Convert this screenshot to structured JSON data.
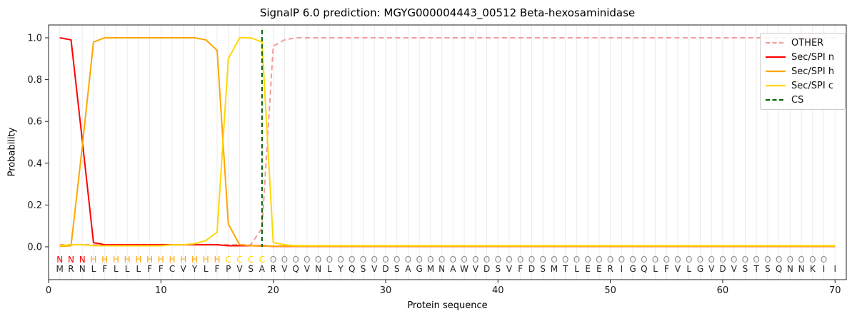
{
  "figure": {
    "title": "SignalP 6.0 prediction: MGYG000004443_00512 Beta-hexosaminidase",
    "xlabel": "Protein sequence",
    "ylabel": "Probability"
  },
  "chart_data": {
    "type": "line",
    "title": "SignalP 6.0 prediction: MGYG000004443_00512 Beta-hexosaminidase",
    "xlabel": "Protein sequence",
    "ylabel": "Probability",
    "xlim": [
      0,
      71
    ],
    "ylim": [
      -0.16,
      1.06
    ],
    "xticks": [
      0,
      10,
      20,
      30,
      40,
      50,
      60,
      70
    ],
    "yticks": [
      0.0,
      0.2,
      0.4,
      0.6,
      0.8,
      1.0
    ],
    "grid": {
      "vertical_per_residue": true,
      "color": "#ebebeb"
    },
    "legend": {
      "position": "upper right",
      "entries": [
        "OTHER",
        "Sec/SPI n",
        "Sec/SPI h",
        "Sec/SPI c",
        "CS"
      ]
    },
    "x": [
      1,
      2,
      3,
      4,
      5,
      6,
      7,
      8,
      9,
      10,
      11,
      12,
      13,
      14,
      15,
      16,
      17,
      18,
      19,
      20,
      21,
      22,
      23,
      24,
      25,
      26,
      27,
      28,
      29,
      30,
      31,
      32,
      33,
      34,
      35,
      36,
      37,
      38,
      39,
      40,
      41,
      42,
      43,
      44,
      45,
      46,
      47,
      48,
      49,
      50,
      51,
      52,
      53,
      54,
      55,
      56,
      57,
      58,
      59,
      60,
      61,
      62,
      63,
      64,
      65,
      66,
      67,
      68,
      69,
      70
    ],
    "series": [
      {
        "name": "OTHER",
        "color": "#F29B9B",
        "style": "dashed",
        "values": [
          0.01,
          0.01,
          0.01,
          0.01,
          0.01,
          0.01,
          0.01,
          0.01,
          0.01,
          0.01,
          0.01,
          0.01,
          0.01,
          0.01,
          0.01,
          0.01,
          0.01,
          0.01,
          0.09,
          0.96,
          0.99,
          1.0,
          1.0,
          1.0,
          1.0,
          1.0,
          1.0,
          1.0,
          1.0,
          1.0,
          1.0,
          1.0,
          1.0,
          1.0,
          1.0,
          1.0,
          1.0,
          1.0,
          1.0,
          1.0,
          1.0,
          1.0,
          1.0,
          1.0,
          1.0,
          1.0,
          1.0,
          1.0,
          1.0,
          1.0,
          1.0,
          1.0,
          1.0,
          1.0,
          1.0,
          1.0,
          1.0,
          1.0,
          1.0,
          1.0,
          1.0,
          1.0,
          1.0,
          1.0,
          1.0,
          1.0,
          1.0,
          1.0,
          1.0,
          1.0
        ]
      },
      {
        "name": "Sec/SPI n",
        "color": "#FF0000",
        "style": "solid",
        "values": [
          1.0,
          0.99,
          0.51,
          0.02,
          0.01,
          0.01,
          0.01,
          0.01,
          0.01,
          0.01,
          0.01,
          0.01,
          0.01,
          0.01,
          0.01,
          0.005,
          0.005,
          0.005,
          0.005,
          0.002,
          0.002,
          0.002,
          0.002,
          0.002,
          0.002,
          0.002,
          0.002,
          0.002,
          0.002,
          0.002,
          0.002,
          0.002,
          0.002,
          0.002,
          0.002,
          0.002,
          0.002,
          0.002,
          0.002,
          0.002,
          0.002,
          0.002,
          0.002,
          0.002,
          0.002,
          0.002,
          0.002,
          0.002,
          0.002,
          0.002,
          0.002,
          0.002,
          0.002,
          0.002,
          0.002,
          0.002,
          0.002,
          0.002,
          0.002,
          0.002,
          0.002,
          0.002,
          0.002,
          0.002,
          0.002,
          0.002,
          0.002,
          0.002,
          0.002,
          0.002
        ]
      },
      {
        "name": "Sec/SPI h",
        "color": "#FFA500",
        "style": "solid",
        "values": [
          0.002,
          0.005,
          0.48,
          0.98,
          1.0,
          1.0,
          1.0,
          1.0,
          1.0,
          1.0,
          1.0,
          1.0,
          1.0,
          0.99,
          0.94,
          0.11,
          0.01,
          0.005,
          0.003,
          0.003,
          0.003,
          0.003,
          0.003,
          0.003,
          0.003,
          0.003,
          0.003,
          0.003,
          0.003,
          0.003,
          0.003,
          0.003,
          0.003,
          0.003,
          0.003,
          0.003,
          0.003,
          0.003,
          0.003,
          0.003,
          0.003,
          0.003,
          0.003,
          0.003,
          0.003,
          0.003,
          0.003,
          0.003,
          0.003,
          0.003,
          0.003,
          0.003,
          0.003,
          0.003,
          0.003,
          0.003,
          0.003,
          0.003,
          0.003,
          0.003,
          0.003,
          0.003,
          0.003,
          0.003,
          0.003,
          0.003,
          0.003,
          0.003,
          0.003,
          0.003
        ]
      },
      {
        "name": "Sec/SPI c",
        "color": "#FFD700",
        "style": "solid",
        "values": [
          0.005,
          0.01,
          0.01,
          0.005,
          0.005,
          0.005,
          0.005,
          0.005,
          0.005,
          0.005,
          0.01,
          0.01,
          0.015,
          0.03,
          0.07,
          0.9,
          1.0,
          1.0,
          0.98,
          0.02,
          0.01,
          0.005,
          0.005,
          0.005,
          0.005,
          0.005,
          0.005,
          0.005,
          0.005,
          0.005,
          0.005,
          0.005,
          0.005,
          0.005,
          0.005,
          0.005,
          0.005,
          0.005,
          0.005,
          0.005,
          0.005,
          0.005,
          0.005,
          0.005,
          0.005,
          0.005,
          0.005,
          0.005,
          0.005,
          0.005,
          0.005,
          0.005,
          0.005,
          0.005,
          0.005,
          0.005,
          0.005,
          0.005,
          0.005,
          0.005,
          0.005,
          0.005,
          0.005,
          0.005,
          0.005,
          0.005,
          0.005,
          0.005,
          0.005,
          0.005
        ]
      }
    ],
    "cs_marker": {
      "name": "CS",
      "position": 19,
      "color": "#006400",
      "style": "dashed"
    },
    "sequence_annotations": {
      "region_labels": "NNNHHHHHHHHHHHHCCCCOOOOOOOOOOOOOOOOOOOOOOOOOOOOOOOOOOOOOOOOOOOOOOOOOO",
      "sequence": "MRNLFLLLFFCVYLFPVSARVQVNLYQSVDSAGMNAWVDSVFDSMTLEERIGQLFVLGVDVSTSQNNKII",
      "region_colors": {
        "N": "#FF0000",
        "H": "#FFA500",
        "C": "#FFD700",
        "O": "#8C8C8C"
      },
      "sequence_color": "#262626"
    }
  }
}
